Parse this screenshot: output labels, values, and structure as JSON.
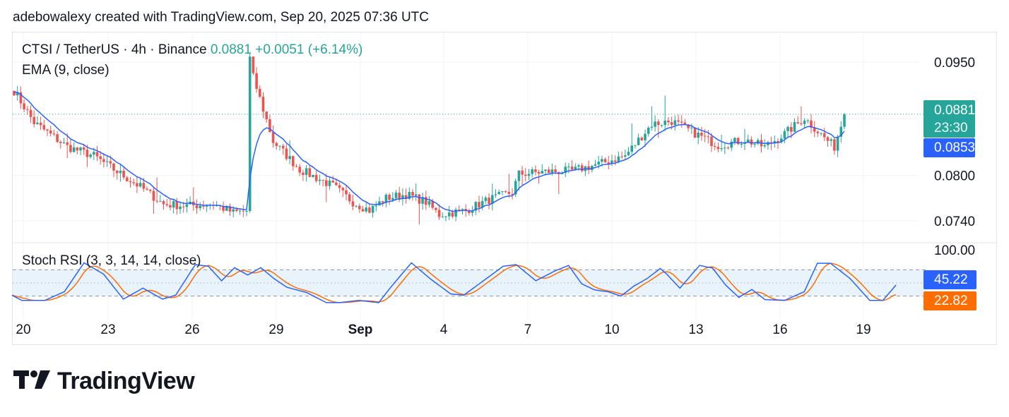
{
  "caption": "adebowalexy created with TradingView.com, Sep 20, 2025 07:36 UTC",
  "legend": {
    "symbol": "CTSI / TetherUS · 4h · Binance",
    "price": "0.0881",
    "change": "+0.0051 (+6.14%)",
    "ema": "EMA (9, close)",
    "stoch": "Stoch RSI (3, 3, 14, 14, close)"
  },
  "badges": {
    "last_price": "0.0881",
    "countdown": "23:30",
    "ema_value": "0.0853",
    "stoch_k": "45.22",
    "stoch_d": "22.82"
  },
  "colors": {
    "up": "#26a69a",
    "down": "#ef5350",
    "ema": "#2962ff",
    "stoch_k": "#2962ff",
    "stoch_d": "#ff6d00",
    "band_fill": "#e8f3fc"
  },
  "brand": "TradingView",
  "brand_icon": "tradingview-logo-icon",
  "chart_data": {
    "type": "candlestick",
    "symbol": "CTSI / TetherUS",
    "interval": "4h",
    "exchange": "Binance",
    "price_axis_labels": [
      "0.0950",
      "0.0800",
      "0.0740"
    ],
    "price_range": [
      0.0715,
      0.098
    ],
    "time_axis_labels": [
      "20",
      "23",
      "26",
      "29",
      "Sep",
      "4",
      "7",
      "10",
      "13",
      "16",
      "19"
    ],
    "last_price": 0.0881,
    "last_ema": 0.0853,
    "close_anchors": [
      [
        0,
        0.0912
      ],
      [
        6,
        0.087
      ],
      [
        16,
        0.0838
      ],
      [
        24,
        0.0826
      ],
      [
        30,
        0.0808
      ],
      [
        38,
        0.0785
      ],
      [
        45,
        0.0762
      ],
      [
        52,
        0.076
      ],
      [
        60,
        0.0762
      ],
      [
        66,
        0.0751
      ],
      [
        70,
        0.0753
      ],
      [
        71,
        0.0955
      ],
      [
        72,
        0.093
      ],
      [
        78,
        0.0845
      ],
      [
        86,
        0.0808
      ],
      [
        96,
        0.0786
      ],
      [
        102,
        0.0765
      ],
      [
        107,
        0.0754
      ],
      [
        112,
        0.077
      ],
      [
        118,
        0.0775
      ],
      [
        124,
        0.0765
      ],
      [
        128,
        0.0748
      ],
      [
        136,
        0.0754
      ],
      [
        143,
        0.0768
      ],
      [
        150,
        0.0778
      ],
      [
        152,
        0.0802
      ],
      [
        160,
        0.0805
      ],
      [
        168,
        0.0806
      ],
      [
        176,
        0.0815
      ],
      [
        184,
        0.0826
      ],
      [
        192,
        0.0868
      ],
      [
        198,
        0.0872
      ],
      [
        204,
        0.0858
      ],
      [
        212,
        0.084
      ],
      [
        220,
        0.0847
      ],
      [
        226,
        0.0838
      ],
      [
        232,
        0.0855
      ],
      [
        238,
        0.0876
      ],
      [
        244,
        0.085
      ],
      [
        247,
        0.0838
      ],
      [
        250,
        0.0881
      ]
    ],
    "ema": {
      "period": 9,
      "source": "close"
    },
    "stoch_rsi": {
      "params": "3, 3, 14, 14, close",
      "axis_label": "100.00",
      "levels": [
        80,
        20
      ],
      "k_last": 45.22,
      "d_last": 22.82,
      "k_anchors": [
        [
          0,
          22
        ],
        [
          3,
          10
        ],
        [
          10,
          10
        ],
        [
          16,
          30
        ],
        [
          22,
          96
        ],
        [
          28,
          70
        ],
        [
          34,
          13
        ],
        [
          40,
          38
        ],
        [
          46,
          13
        ],
        [
          50,
          22
        ],
        [
          56,
          92
        ],
        [
          60,
          88
        ],
        [
          64,
          55
        ],
        [
          68,
          85
        ],
        [
          72,
          68
        ],
        [
          76,
          85
        ],
        [
          80,
          60
        ],
        [
          84,
          40
        ],
        [
          90,
          28
        ],
        [
          96,
          5
        ],
        [
          100,
          5
        ],
        [
          106,
          10
        ],
        [
          112,
          5
        ],
        [
          116,
          43
        ],
        [
          122,
          96
        ],
        [
          128,
          58
        ],
        [
          134,
          25
        ],
        [
          138,
          22
        ],
        [
          144,
          55
        ],
        [
          150,
          88
        ],
        [
          154,
          92
        ],
        [
          160,
          55
        ],
        [
          166,
          78
        ],
        [
          170,
          90
        ],
        [
          174,
          48
        ],
        [
          178,
          34
        ],
        [
          182,
          30
        ],
        [
          186,
          20
        ],
        [
          190,
          43
        ],
        [
          194,
          60
        ],
        [
          198,
          83
        ],
        [
          200,
          70
        ],
        [
          204,
          38
        ],
        [
          210,
          90
        ],
        [
          214,
          84
        ],
        [
          218,
          45
        ],
        [
          222,
          17
        ],
        [
          226,
          35
        ],
        [
          230,
          12
        ],
        [
          236,
          10
        ],
        [
          242,
          30
        ],
        [
          246,
          95
        ],
        [
          250,
          95
        ],
        [
          256,
          60
        ],
        [
          262,
          10
        ],
        [
          266,
          10
        ],
        [
          270,
          45
        ]
      ]
    }
  }
}
